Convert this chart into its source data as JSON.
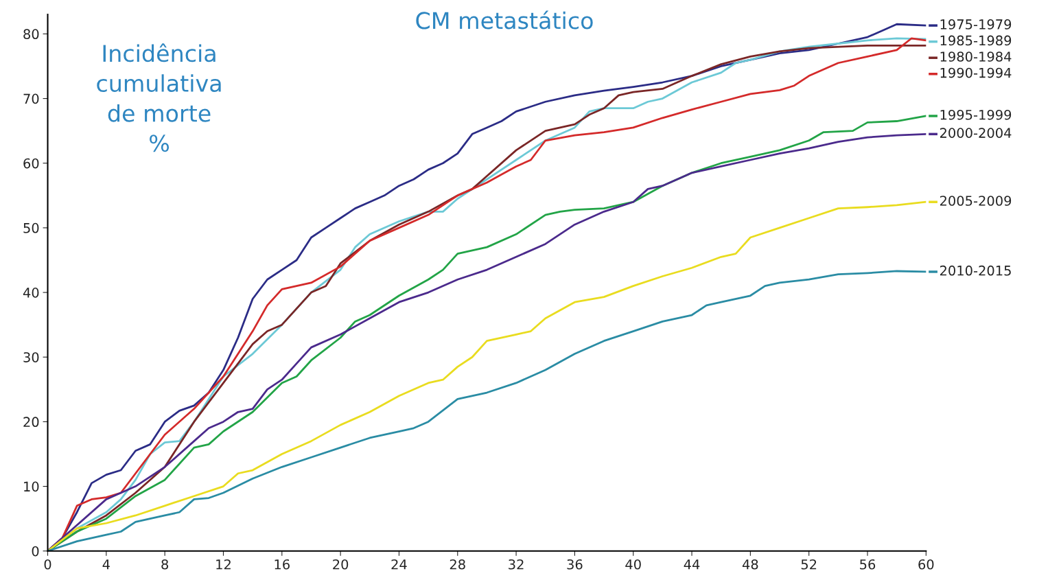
{
  "chart_data": {
    "type": "line",
    "title": "CM metastático",
    "ylabel": "Incidência\ncumulativa\nde morte\n%",
    "xlim": [
      0,
      60
    ],
    "xticks": [
      0,
      4,
      8,
      12,
      16,
      20,
      24,
      28,
      32,
      36,
      40,
      44,
      48,
      52,
      56,
      60
    ],
    "ylim": [
      0,
      83
    ],
    "yticks": [
      0,
      10,
      20,
      30,
      40,
      50,
      60,
      70,
      80
    ],
    "grid": false,
    "legend": "right",
    "marker": "none",
    "line_style": "solid",
    "series": [
      {
        "name": "1975-1979",
        "color": "#2b2c86",
        "x": [
          0,
          1,
          2,
          3,
          4,
          5,
          6,
          7,
          8,
          9,
          10,
          11,
          12,
          13,
          14,
          15,
          16,
          17,
          18,
          19,
          20,
          21,
          22,
          23,
          24,
          25,
          26,
          27,
          28,
          29,
          30,
          31,
          32,
          34,
          36,
          38,
          40,
          42,
          44,
          46,
          48,
          50,
          52,
          54,
          56,
          57,
          58,
          60
        ],
        "values": [
          0,
          2,
          6,
          10.5,
          11.8,
          12.5,
          15.5,
          16.5,
          20,
          21.7,
          22.5,
          24.5,
          28,
          33,
          39,
          42,
          43.5,
          45,
          48.5,
          50,
          51.5,
          53,
          54,
          55,
          56.5,
          57.5,
          59,
          60,
          61.5,
          64.5,
          65.5,
          66.5,
          68,
          69.5,
          70.5,
          71.2,
          71.8,
          72.5,
          73.5,
          75,
          76,
          77,
          77.5,
          78.5,
          79.5,
          80.5,
          81.5,
          81.3
        ]
      },
      {
        "name": "1985-1989",
        "color": "#6cc9d6",
        "x": [
          0,
          2,
          4,
          5,
          6,
          7,
          8,
          9,
          10,
          12,
          14,
          16,
          18,
          20,
          21,
          22,
          24,
          26,
          27,
          28,
          30,
          32,
          34,
          36,
          37,
          38,
          40,
          41,
          42,
          44,
          46,
          47,
          48,
          50,
          52,
          54,
          56,
          58,
          60
        ],
        "values": [
          0,
          3.5,
          6,
          8,
          11,
          15,
          16.8,
          17,
          20,
          27,
          30.5,
          35,
          40,
          43.5,
          47,
          49,
          51,
          52.5,
          52.5,
          54.5,
          57.5,
          60.5,
          63.5,
          65.5,
          68,
          68.5,
          68.5,
          69.5,
          70,
          72.5,
          74,
          75.5,
          76,
          77.3,
          78,
          78.5,
          79,
          79.3,
          79.2
        ]
      },
      {
        "name": "1980-1984",
        "color": "#7a2626",
        "x": [
          0,
          2,
          4,
          6,
          8,
          10,
          12,
          13,
          14,
          15,
          16,
          18,
          19,
          20,
          22,
          24,
          26,
          28,
          29,
          30,
          32,
          34,
          36,
          37,
          38,
          39,
          40,
          42,
          44,
          46,
          48,
          50,
          52,
          56,
          60
        ],
        "values": [
          0,
          3,
          5.5,
          9,
          13,
          20,
          26,
          29,
          32,
          34,
          35,
          40,
          41,
          44.5,
          48,
          50.5,
          52.5,
          55,
          56,
          58,
          62,
          65,
          66,
          67.5,
          68.5,
          70.5,
          71,
          71.5,
          73.5,
          75.3,
          76.5,
          77.3,
          77.8,
          78.2,
          78.2
        ]
      },
      {
        "name": "1990-1994",
        "color": "#d42a2a",
        "x": [
          0,
          1,
          2,
          3,
          4,
          5,
          6,
          8,
          10,
          12,
          14,
          15,
          16,
          18,
          20,
          22,
          24,
          26,
          28,
          30,
          32,
          33,
          34,
          36,
          38,
          40,
          42,
          44,
          46,
          48,
          50,
          51,
          52,
          54,
          56,
          58,
          59,
          60
        ],
        "values": [
          0,
          2,
          7,
          8,
          8.3,
          9,
          12,
          18,
          22,
          27,
          34,
          38,
          40.5,
          41.5,
          44,
          48,
          50,
          52,
          55,
          57,
          59.5,
          60.5,
          63.5,
          64.3,
          64.8,
          65.5,
          67,
          68.3,
          69.5,
          70.7,
          71.3,
          72,
          73.5,
          75.5,
          76.5,
          77.5,
          79.3,
          79
        ]
      },
      {
        "name": "1995-1999",
        "color": "#22a447",
        "x": [
          0,
          2,
          4,
          6,
          8,
          10,
          11,
          12,
          14,
          16,
          17,
          18,
          20,
          21,
          22,
          24,
          26,
          27,
          28,
          30,
          32,
          34,
          35,
          36,
          38,
          40,
          42,
          44,
          46,
          48,
          50,
          52,
          53,
          55,
          56,
          58,
          60
        ],
        "values": [
          0,
          3,
          5,
          8.5,
          11,
          16,
          16.5,
          18.5,
          21.5,
          26,
          27,
          29.5,
          33,
          35.5,
          36.5,
          39.5,
          42,
          43.5,
          46,
          47,
          49,
          52,
          52.5,
          52.8,
          53,
          54,
          56.5,
          58.5,
          60,
          61,
          62,
          63.5,
          64.8,
          65,
          66.3,
          66.5,
          67.3
        ]
      },
      {
        "name": "2000-2004",
        "color": "#4b2a8c",
        "x": [
          0,
          2,
          4,
          6,
          8,
          10,
          11,
          12,
          13,
          14,
          15,
          16,
          17,
          18,
          20,
          22,
          24,
          26,
          28,
          30,
          32,
          34,
          36,
          38,
          40,
          41,
          42,
          44,
          46,
          48,
          50,
          52,
          54,
          56,
          58,
          60
        ],
        "values": [
          0,
          4,
          8,
          10,
          13,
          17,
          19,
          20,
          21.5,
          22,
          25,
          26.5,
          29,
          31.5,
          33.5,
          36,
          38.5,
          40,
          42,
          43.5,
          45.5,
          47.5,
          50.5,
          52.5,
          54,
          56,
          56.5,
          58.5,
          59.5,
          60.5,
          61.5,
          62.3,
          63.3,
          64,
          64.3,
          64.5
        ]
      },
      {
        "name": "2005-2009",
        "color": "#e9dc1f",
        "x": [
          0,
          2,
          4,
          6,
          8,
          10,
          12,
          13,
          14,
          16,
          18,
          20,
          22,
          24,
          26,
          27,
          28,
          29,
          30,
          32,
          33,
          34,
          36,
          38,
          40,
          42,
          44,
          46,
          47,
          48,
          50,
          52,
          54,
          56,
          58,
          60
        ],
        "values": [
          0,
          3.5,
          4.3,
          5.5,
          7,
          8.5,
          10,
          12,
          12.5,
          15,
          17,
          19.5,
          21.5,
          24,
          26,
          26.5,
          28.5,
          30,
          32.5,
          33.5,
          34,
          36,
          38.5,
          39.3,
          41,
          42.5,
          43.8,
          45.5,
          46,
          48.5,
          50,
          51.5,
          53,
          53.2,
          53.5,
          54
        ]
      },
      {
        "name": "2010-2015",
        "color": "#2a8ca4",
        "x": [
          0,
          2,
          4,
          5,
          6,
          8,
          9,
          10,
          11,
          12,
          14,
          16,
          18,
          20,
          22,
          24,
          25,
          26,
          28,
          30,
          32,
          34,
          36,
          38,
          40,
          42,
          44,
          45,
          46,
          48,
          49,
          50,
          52,
          54,
          56,
          58,
          60
        ],
        "values": [
          0,
          1.5,
          2.5,
          3,
          4.5,
          5.5,
          6,
          8,
          8.2,
          9,
          11.2,
          13,
          14.5,
          16,
          17.5,
          18.5,
          19,
          20,
          23.5,
          24.5,
          26,
          28,
          30.5,
          32.5,
          34,
          35.5,
          36.5,
          38,
          38.5,
          39.5,
          41,
          41.5,
          42,
          42.8,
          43,
          43.3,
          43.2
        ]
      }
    ]
  }
}
